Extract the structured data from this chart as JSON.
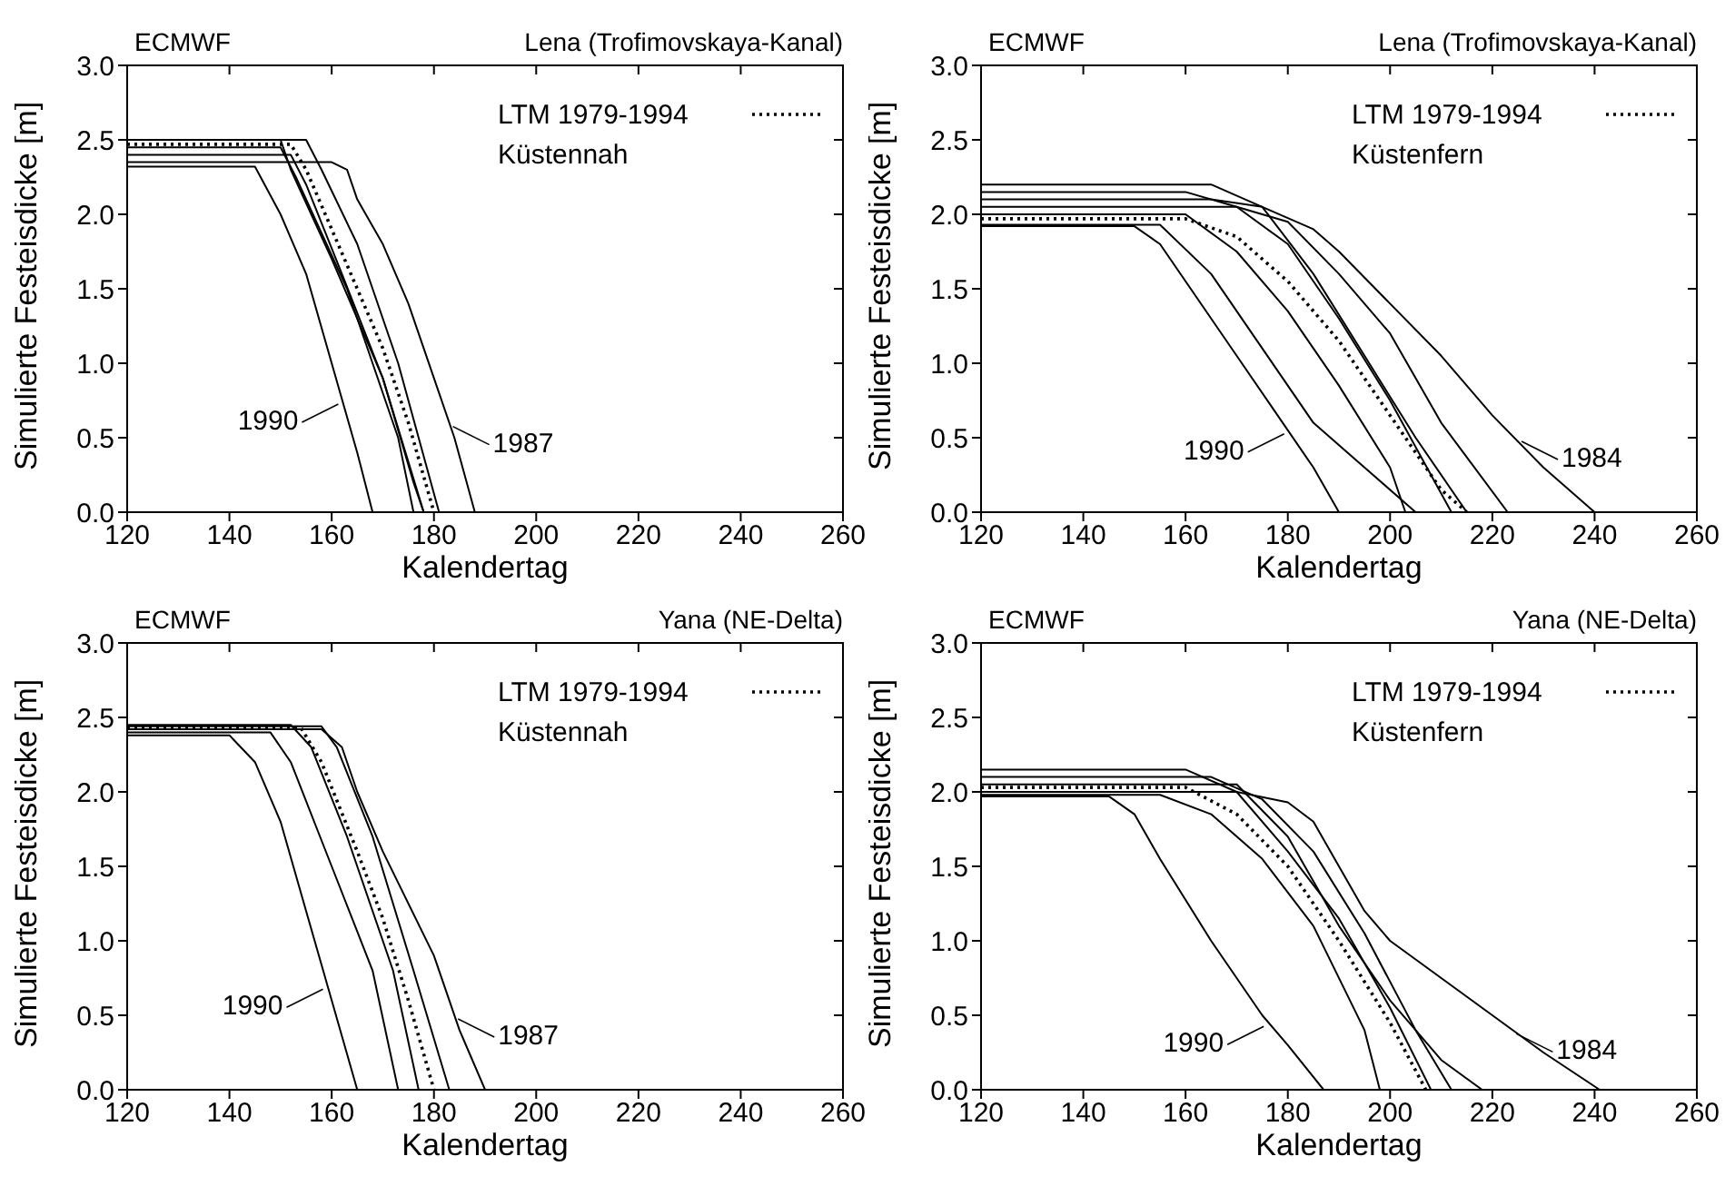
{
  "chart_data": [
    {
      "type": "line",
      "title": "ECMWF",
      "subtitle": "Lena (Trofimovskaya-Kanal)",
      "xlabel": "Kalendertag",
      "ylabel": "Simulierte Festeisdicke [m]",
      "xlim": [
        120,
        260
      ],
      "ylim": [
        0,
        3
      ],
      "xticks": [
        120,
        140,
        160,
        180,
        200,
        220,
        240,
        260
      ],
      "yticks": [
        {
          "value": 0,
          "label": "0.0"
        },
        {
          "value": 0.5,
          "label": "0.5"
        },
        {
          "value": 1,
          "label": "1.0"
        },
        {
          "value": 1.5,
          "label": "1.5"
        },
        {
          "value": 2,
          "label": "2.0"
        },
        {
          "value": 2.5,
          "label": "2.5"
        },
        {
          "value": 3,
          "label": "3.0"
        }
      ],
      "legend": "top right",
      "grid": false,
      "annotations": [
        "Küstennah",
        {
          "text": "1990",
          "x": 162,
          "y": 0.75
        },
        {
          "text": "1987",
          "x": 183,
          "y": 0.6
        }
      ],
      "series": [
        {
          "color": "#000000",
          "line_style": "solid",
          "x": [
            120,
            145,
            150,
            155,
            160,
            165,
            168
          ],
          "values": [
            2.32,
            2.32,
            2.0,
            1.6,
            1.0,
            0.4,
            0
          ]
        },
        {
          "color": "#000000",
          "line_style": "solid",
          "x": [
            120,
            160,
            163,
            165,
            170,
            175,
            180,
            184,
            188
          ],
          "values": [
            2.35,
            2.35,
            2.3,
            2.1,
            1.8,
            1.4,
            0.9,
            0.5,
            0
          ]
        },
        {
          "color": "#000000",
          "line_style": "solid",
          "x": [
            120,
            150,
            152,
            160,
            170,
            178
          ],
          "values": [
            2.5,
            2.5,
            2.3,
            1.7,
            0.9,
            0
          ]
        },
        {
          "color": "#000000",
          "line_style": "solid",
          "x": [
            120,
            155,
            158,
            165,
            173,
            181
          ],
          "values": [
            2.5,
            2.5,
            2.3,
            1.8,
            1.0,
            0
          ]
        },
        {
          "color": "#000000",
          "line_style": "solid",
          "x": [
            120,
            152,
            155,
            162,
            170,
            176,
            178
          ],
          "values": [
            2.4,
            2.4,
            2.2,
            1.6,
            0.9,
            0.2,
            0
          ]
        },
        {
          "color": "#000000",
          "line_style": "solid",
          "x": [
            120,
            150,
            153,
            163,
            173,
            176
          ],
          "values": [
            2.45,
            2.45,
            2.25,
            1.5,
            0.5,
            0
          ]
        },
        {
          "name": "LTM 1979-1994",
          "color": "#000000",
          "line_style": "dotted",
          "x": [
            120,
            152,
            155,
            160,
            165,
            170,
            175,
            180
          ],
          "values": [
            2.47,
            2.47,
            2.3,
            1.9,
            1.5,
            1.1,
            0.6,
            0
          ]
        }
      ]
    },
    {
      "type": "line",
      "title": "ECMWF",
      "subtitle": "Lena (Trofimovskaya-Kanal)",
      "xlabel": "Kalendertag",
      "ylabel": "Simulierte Festeisdicke [m]",
      "xlim": [
        120,
        260
      ],
      "ylim": [
        0,
        3
      ],
      "xticks": [
        120,
        140,
        160,
        180,
        200,
        220,
        240,
        260
      ],
      "yticks": [
        {
          "value": 0,
          "label": "0.0"
        },
        {
          "value": 0.5,
          "label": "0.5"
        },
        {
          "value": 1,
          "label": "1.0"
        },
        {
          "value": 1.5,
          "label": "1.5"
        },
        {
          "value": 2,
          "label": "2.0"
        },
        {
          "value": 2.5,
          "label": "2.5"
        },
        {
          "value": 3,
          "label": "3.0"
        }
      ],
      "legend": "top right",
      "grid": false,
      "annotations": [
        "Küstenfern",
        {
          "text": "1990",
          "x": 180,
          "y": 0.55
        },
        {
          "text": "1984",
          "x": 225,
          "y": 0.5
        }
      ],
      "series": [
        {
          "color": "#000000",
          "line_style": "solid",
          "x": [
            120,
            150,
            155,
            160,
            170,
            178,
            185,
            190
          ],
          "values": [
            1.92,
            1.92,
            1.8,
            1.55,
            1.05,
            0.65,
            0.3,
            0
          ]
        },
        {
          "color": "#000000",
          "line_style": "solid",
          "x": [
            120,
            165,
            175,
            185,
            190,
            200,
            210,
            220,
            230,
            240
          ],
          "values": [
            2.1,
            2.1,
            2.05,
            1.9,
            1.75,
            1.4,
            1.05,
            0.65,
            0.3,
            0
          ]
        },
        {
          "color": "#000000",
          "line_style": "solid",
          "x": [
            120,
            160,
            170,
            180,
            190,
            200,
            212
          ],
          "values": [
            2.15,
            2.15,
            2.05,
            1.8,
            1.3,
            0.75,
            0
          ]
        },
        {
          "color": "#000000",
          "line_style": "solid",
          "x": [
            120,
            165,
            175,
            185,
            195,
            205,
            215
          ],
          "values": [
            2.2,
            2.2,
            2.05,
            1.6,
            1.05,
            0.5,
            0
          ]
        },
        {
          "color": "#000000",
          "line_style": "solid",
          "x": [
            120,
            170,
            180,
            190,
            200,
            210,
            223
          ],
          "values": [
            2.05,
            2.05,
            1.95,
            1.6,
            1.2,
            0.6,
            0
          ]
        },
        {
          "color": "#000000",
          "line_style": "solid",
          "x": [
            120,
            155,
            165,
            175,
            185,
            195,
            205
          ],
          "values": [
            1.93,
            1.93,
            1.6,
            1.1,
            0.6,
            0.3,
            0
          ]
        },
        {
          "color": "#000000",
          "line_style": "solid",
          "x": [
            120,
            160,
            170,
            180,
            190,
            200,
            203
          ],
          "values": [
            2.0,
            2.0,
            1.75,
            1.35,
            0.85,
            0.3,
            0
          ]
        },
        {
          "name": "LTM 1979-1994",
          "color": "#000000",
          "line_style": "dotted",
          "x": [
            120,
            160,
            170,
            180,
            190,
            200,
            210,
            215
          ],
          "values": [
            1.97,
            1.97,
            1.85,
            1.55,
            1.15,
            0.65,
            0.15,
            0
          ]
        }
      ]
    },
    {
      "type": "line",
      "title": "ECMWF",
      "subtitle": "Yana (NE-Delta)",
      "xlabel": "Kalendertag",
      "ylabel": "Simulierte Festeisdicke [m]",
      "xlim": [
        120,
        260
      ],
      "ylim": [
        0,
        3
      ],
      "xticks": [
        120,
        140,
        160,
        180,
        200,
        220,
        240,
        260
      ],
      "yticks": [
        {
          "value": 0,
          "label": "0.0"
        },
        {
          "value": 0.5,
          "label": "0.5"
        },
        {
          "value": 1,
          "label": "1.0"
        },
        {
          "value": 1.5,
          "label": "1.5"
        },
        {
          "value": 2,
          "label": "2.0"
        },
        {
          "value": 2.5,
          "label": "2.5"
        },
        {
          "value": 3,
          "label": "3.0"
        }
      ],
      "legend": "top right",
      "grid": false,
      "annotations": [
        "Küstennah",
        {
          "text": "1990",
          "x": 159,
          "y": 0.7
        },
        {
          "text": "1987",
          "x": 184,
          "y": 0.5
        }
      ],
      "series": [
        {
          "color": "#000000",
          "line_style": "solid",
          "x": [
            120,
            140,
            145,
            150,
            155,
            160,
            165
          ],
          "values": [
            2.38,
            2.38,
            2.2,
            1.8,
            1.2,
            0.6,
            0
          ]
        },
        {
          "color": "#000000",
          "line_style": "solid",
          "x": [
            120,
            158,
            162,
            165,
            170,
            180,
            185,
            190
          ],
          "values": [
            2.42,
            2.42,
            2.3,
            2.0,
            1.6,
            0.9,
            0.4,
            0
          ]
        },
        {
          "color": "#000000",
          "line_style": "solid",
          "x": [
            120,
            152,
            156,
            163,
            172,
            177
          ],
          "values": [
            2.45,
            2.45,
            2.3,
            1.7,
            0.8,
            0
          ]
        },
        {
          "color": "#000000",
          "line_style": "solid",
          "x": [
            120,
            148,
            152,
            160,
            168,
            173
          ],
          "values": [
            2.4,
            2.4,
            2.2,
            1.5,
            0.8,
            0
          ]
        },
        {
          "color": "#000000",
          "line_style": "solid",
          "x": [
            120,
            158,
            161,
            168,
            176,
            183
          ],
          "values": [
            2.44,
            2.44,
            2.3,
            1.7,
            0.8,
            0
          ]
        },
        {
          "name": "LTM 1979-1994",
          "color": "#000000",
          "line_style": "dotted",
          "x": [
            120,
            154,
            158,
            165,
            170,
            175,
            180
          ],
          "values": [
            2.43,
            2.43,
            2.2,
            1.6,
            1.15,
            0.6,
            0
          ]
        }
      ]
    },
    {
      "type": "line",
      "title": "ECMWF",
      "subtitle": "Yana (NE-Delta)",
      "xlabel": "Kalendertag",
      "ylabel": "Simulierte Festeisdicke [m]",
      "xlim": [
        120,
        260
      ],
      "ylim": [
        0,
        3
      ],
      "xticks": [
        120,
        140,
        160,
        180,
        200,
        220,
        240,
        260
      ],
      "yticks": [
        {
          "value": 0,
          "label": "0.0"
        },
        {
          "value": 0.5,
          "label": "0.5"
        },
        {
          "value": 1,
          "label": "1.0"
        },
        {
          "value": 1.5,
          "label": "1.5"
        },
        {
          "value": 2,
          "label": "2.0"
        },
        {
          "value": 2.5,
          "label": "2.5"
        },
        {
          "value": 3,
          "label": "3.0"
        }
      ],
      "legend": "top right",
      "grid": false,
      "annotations": [
        "Küstenfern",
        {
          "text": "1990",
          "x": 176,
          "y": 0.45
        },
        {
          "text": "1984",
          "x": 224,
          "y": 0.4
        }
      ],
      "series": [
        {
          "color": "#000000",
          "line_style": "solid",
          "x": [
            120,
            145,
            150,
            155,
            165,
            175,
            180,
            187
          ],
          "values": [
            1.97,
            1.97,
            1.85,
            1.55,
            1.0,
            0.5,
            0.3,
            0
          ]
        },
        {
          "color": "#000000",
          "line_style": "solid",
          "x": [
            120,
            170,
            180,
            185,
            190,
            195,
            200,
            210,
            220,
            230,
            241
          ],
          "values": [
            2.0,
            2.0,
            1.93,
            1.8,
            1.5,
            1.2,
            1.0,
            0.75,
            0.5,
            0.25,
            0
          ]
        },
        {
          "color": "#000000",
          "line_style": "solid",
          "x": [
            120,
            160,
            170,
            180,
            190,
            200,
            208
          ],
          "values": [
            2.15,
            2.15,
            2.0,
            1.6,
            1.15,
            0.55,
            0
          ]
        },
        {
          "color": "#000000",
          "line_style": "solid",
          "x": [
            120,
            165,
            175,
            185,
            195,
            205,
            212
          ],
          "values": [
            2.1,
            2.1,
            1.95,
            1.6,
            1.05,
            0.4,
            0
          ]
        },
        {
          "color": "#000000",
          "line_style": "solid",
          "x": [
            120,
            155,
            165,
            175,
            185,
            195,
            198
          ],
          "values": [
            1.98,
            1.98,
            1.85,
            1.55,
            1.1,
            0.4,
            0
          ]
        },
        {
          "color": "#000000",
          "line_style": "solid",
          "x": [
            120,
            170,
            180,
            190,
            200,
            210,
            218
          ],
          "values": [
            2.05,
            2.05,
            1.7,
            1.1,
            0.6,
            0.2,
            0
          ]
        },
        {
          "name": "LTM 1979-1994",
          "color": "#000000",
          "line_style": "dotted",
          "x": [
            120,
            160,
            170,
            180,
            190,
            200,
            207
          ],
          "values": [
            2.03,
            2.03,
            1.85,
            1.5,
            1.0,
            0.45,
            0
          ]
        }
      ]
    }
  ]
}
